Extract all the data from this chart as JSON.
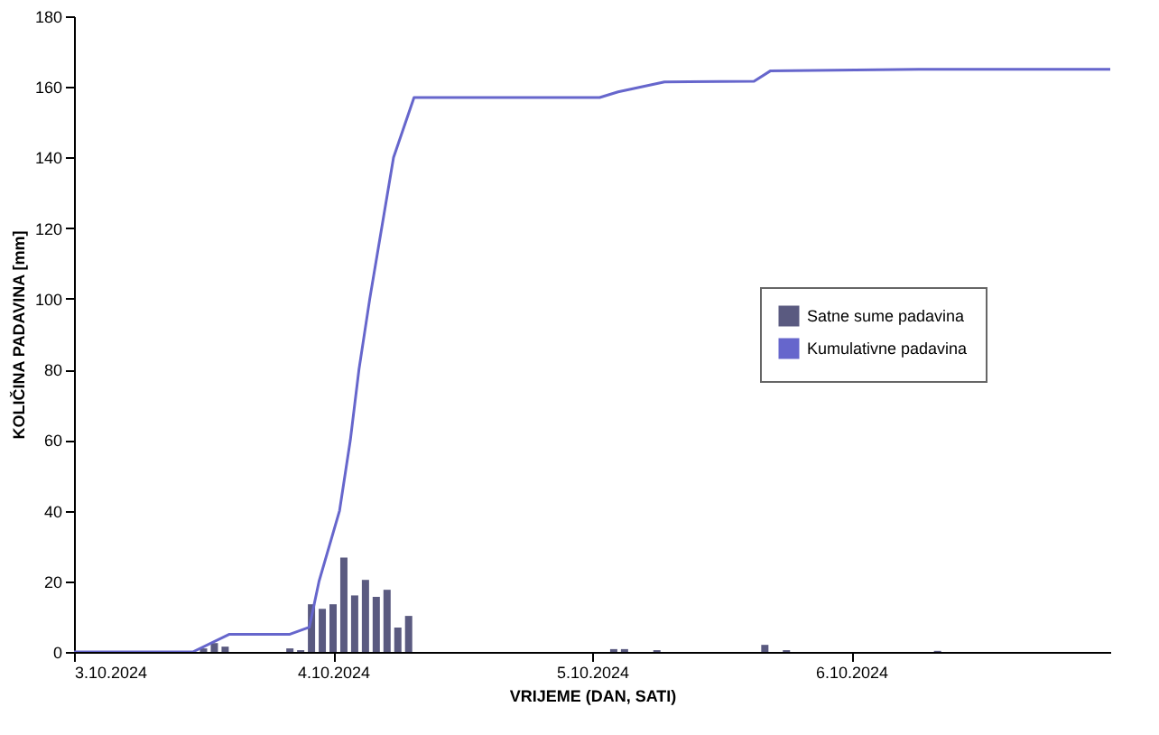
{
  "chart_data": {
    "type": "bar",
    "xlabel": "VRIJEME (DAN, SATI)",
    "ylabel": "KOLIČINA PADAVINA  [mm]",
    "xlim": [
      "2024-10-03T00:00",
      "2024-10-07T00:00"
    ],
    "xticks": [
      {
        "value": "2024-10-03",
        "label": "3.10.2024"
      },
      {
        "value": "2024-10-04",
        "label": "4.10.2024"
      },
      {
        "value": "2024-10-05",
        "label": "5.10.2024"
      },
      {
        "value": "2024-10-06",
        "label": "6.10.2024"
      }
    ],
    "ylim": [
      0,
      180
    ],
    "yticks": [
      0,
      20,
      40,
      60,
      80,
      100,
      120,
      140,
      160,
      180
    ],
    "grid": false,
    "legend": "right",
    "series": [
      {
        "name": "Satne sume padavina",
        "color": "#5a5a80",
        "x": [
          "2024-10-03T12:00",
          "2024-10-03T13:00",
          "2024-10-03T14:00",
          "2024-10-03T20:00",
          "2024-10-03T21:00",
          "2024-10-03T22:00",
          "2024-10-03T23:00",
          "2024-10-04T00:00",
          "2024-10-04T01:00",
          "2024-10-04T02:00",
          "2024-10-04T03:00",
          "2024-10-04T04:00",
          "2024-10-04T05:00",
          "2024-10-04T06:00",
          "2024-10-04T07:00",
          "2024-10-05T02:00",
          "2024-10-05T03:00",
          "2024-10-05T06:00",
          "2024-10-05T16:00",
          "2024-10-05T18:00",
          "2024-10-06T08:00"
        ],
        "values": [
          1,
          2.5,
          1.5,
          1,
          0.5,
          13.5,
          12.2,
          13.5,
          26.7,
          16,
          20.4,
          15.6,
          17.6,
          6.9,
          10.2,
          0.8,
          0.8,
          0.5,
          2,
          0.5,
          0.3
        ]
      },
      {
        "name": "Kumulativne padavina",
        "type": "line",
        "color": "#6666cc",
        "x": [
          "2024-10-03T00:00",
          "2024-10-03T11:00",
          "2024-10-03T14:24",
          "2024-10-03T20:00",
          "2024-10-03T21:48",
          "2024-10-03T22:42",
          "2024-10-04T00:36",
          "2024-10-04T01:36",
          "2024-10-04T02:24",
          "2024-10-04T03:24",
          "2024-10-04T04:30",
          "2024-10-04T05:36",
          "2024-10-04T07:30",
          "2024-10-05T00:42",
          "2024-10-05T02:24",
          "2024-10-05T06:42",
          "2024-10-05T15:00",
          "2024-10-05T16:30",
          "2024-10-06T07:12",
          "2024-10-07T00:00"
        ],
        "values": [
          0,
          0,
          5,
          5,
          7,
          20,
          40,
          60,
          80,
          100,
          120,
          140,
          157,
          157,
          158.6,
          161.4,
          161.6,
          164.5,
          165,
          165
        ]
      }
    ]
  }
}
